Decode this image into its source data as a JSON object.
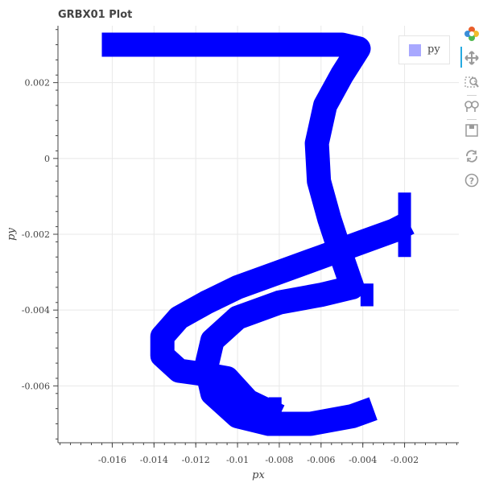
{
  "title": "GRBX01 Plot",
  "toolbar": {
    "tools": [
      {
        "name": "bokeh-logo-icon",
        "label": "Bokeh"
      },
      {
        "name": "pan-icon",
        "label": "Pan"
      },
      {
        "name": "box-zoom-icon",
        "label": "Box Zoom"
      },
      {
        "name": "wheel-zoom-icon",
        "label": "Wheel Zoom"
      },
      {
        "name": "save-icon",
        "label": "Save"
      },
      {
        "name": "reset-icon",
        "label": "Reset"
      },
      {
        "name": "help-icon",
        "label": "Help"
      }
    ]
  },
  "colors": {
    "series": "#0000ff",
    "legend_swatch": "#a8a8ff",
    "grid": "#e8e8e8",
    "axis": "#444444",
    "active_tool": "#26aae1"
  },
  "chart_data": {
    "type": "line",
    "title": "GRBX01 Plot",
    "xlabel": "px",
    "ylabel": "py",
    "xlim": [
      -0.0186,
      0.0006
    ],
    "ylim": [
      -0.0075,
      0.0035
    ],
    "x_ticks": [
      -0.016,
      -0.014,
      -0.012,
      -0.01,
      -0.008,
      -0.006,
      -0.004,
      -0.002
    ],
    "x_tick_labels": [
      "-0.016",
      "-0.014",
      "-0.012",
      "-0.01",
      "-0.008",
      "-0.006",
      "-0.004",
      "-0.002"
    ],
    "y_ticks": [
      -0.006,
      -0.004,
      -0.002,
      0,
      0.002
    ],
    "y_tick_labels": [
      "-0.006",
      "-0.004",
      "-0.002",
      "0",
      "0.002"
    ],
    "grid": true,
    "legend": {
      "position": "top-right",
      "entries": [
        "py"
      ]
    },
    "series": [
      {
        "name": "py",
        "color": "#0000ff",
        "line_width_note": "very thick line",
        "x": [
          -0.0165,
          -0.012,
          -0.008,
          -0.005,
          -0.0042,
          -0.005,
          -0.0058,
          -0.0062,
          -0.0061,
          -0.0056,
          -0.005,
          -0.0045,
          -0.006,
          -0.008,
          -0.01,
          -0.0112,
          -0.0115,
          -0.0112,
          -0.01,
          -0.0085,
          -0.0065,
          -0.0045,
          -0.0035
        ],
        "y": [
          0.003,
          0.003,
          0.003,
          0.003,
          0.0029,
          0.0022,
          0.0014,
          0.0004,
          -0.0006,
          -0.0016,
          -0.0026,
          -0.0034,
          -0.0036,
          -0.0038,
          -0.0042,
          -0.0048,
          -0.0055,
          -0.0062,
          -0.0068,
          -0.007,
          -0.007,
          -0.0068,
          -0.0066
        ]
      },
      {
        "name": "py",
        "color": "#0000ff",
        "x": [
          -0.008,
          -0.0095,
          -0.0105,
          -0.0115,
          -0.0128,
          -0.0136,
          -0.0136,
          -0.0128,
          -0.0115,
          -0.01,
          -0.008,
          -0.006,
          -0.004,
          -0.0025,
          -0.0018
        ],
        "y": [
          -0.0068,
          -0.0064,
          -0.0058,
          -0.0057,
          -0.0056,
          -0.0052,
          -0.0047,
          -0.0042,
          -0.0038,
          -0.0034,
          -0.003,
          -0.0026,
          -0.0022,
          -0.0019,
          -0.0017
        ]
      }
    ]
  }
}
